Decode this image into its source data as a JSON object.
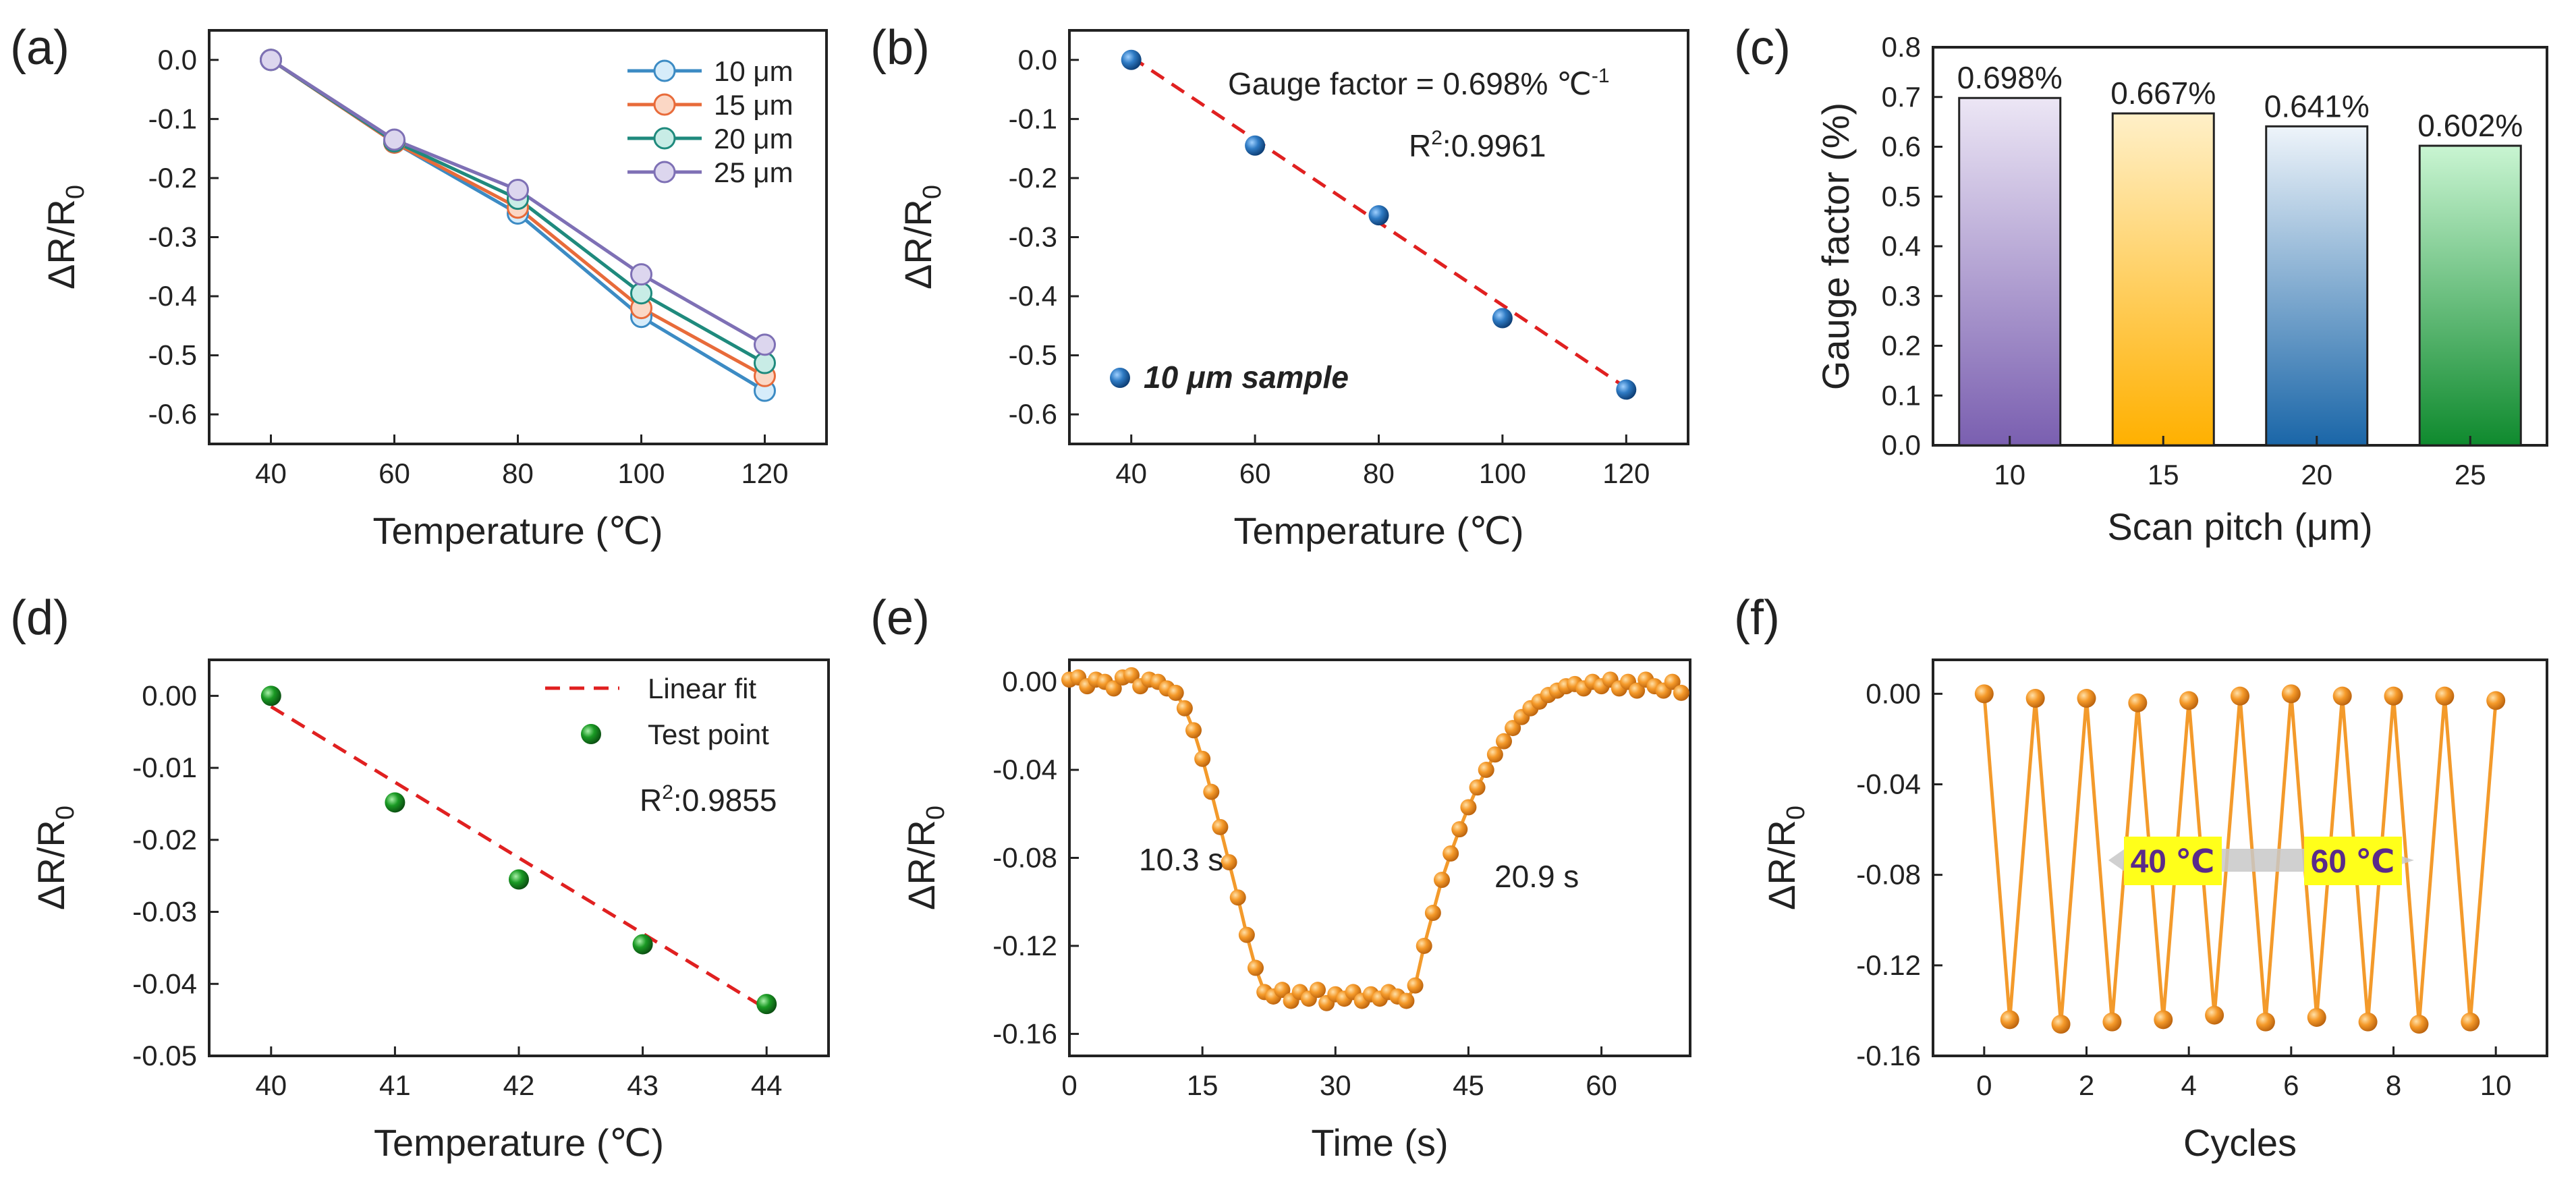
{
  "colors": {
    "blue_series": "#3c8bc4",
    "orange_series": "#e86b3a",
    "teal_series": "#1f8a7d",
    "purple_series": "#7e70b5",
    "fit_line": "#e02020",
    "blue_point": "#1f5fa0",
    "green_point": "#138a1b",
    "orange_point": "#f39a2b",
    "yellow_box": "#ffff1a",
    "arrow_gray": "#c8c8c8"
  },
  "panel_labels": {
    "a": "(a)",
    "b": "(b)",
    "c": "(c)",
    "d": "(d)",
    "e": "(e)",
    "f": "(f)"
  },
  "chart_data": [
    {
      "id": "a",
      "type": "line",
      "xlabel": "Temperature (℃)",
      "ylabel": "ΔR/R",
      "ylabel_sub": "0",
      "xlim": [
        30,
        130
      ],
      "ylim": [
        -0.65,
        0.05
      ],
      "xticks": [
        40,
        60,
        80,
        100,
        120
      ],
      "xtick_labels": [
        "40",
        "60",
        "80",
        "100",
        "120"
      ],
      "yticks": [
        0.0,
        -0.1,
        -0.2,
        -0.3,
        -0.4,
        -0.5,
        -0.6
      ],
      "ytick_labels": [
        "0.0",
        "-0.1",
        "-0.2",
        "-0.3",
        "-0.4",
        "-0.5",
        "-0.6"
      ],
      "x": [
        40,
        60,
        80,
        100,
        120
      ],
      "legend_position": "top-right",
      "series": [
        {
          "name": "10 μm",
          "values": [
            0.0,
            -0.14,
            -0.26,
            -0.435,
            -0.56
          ]
        },
        {
          "name": "15 μm",
          "values": [
            0.0,
            -0.14,
            -0.25,
            -0.42,
            -0.535
          ]
        },
        {
          "name": "20 μm",
          "values": [
            0.0,
            -0.138,
            -0.235,
            -0.395,
            -0.513
          ]
        },
        {
          "name": "25 μm",
          "values": [
            0.0,
            -0.135,
            -0.22,
            -0.363,
            -0.482
          ]
        }
      ]
    },
    {
      "id": "b",
      "type": "scatter",
      "xlabel": "Temperature (℃)",
      "ylabel": "ΔR/R",
      "ylabel_sub": "0",
      "xlim": [
        30,
        130
      ],
      "ylim": [
        -0.65,
        0.05
      ],
      "xticks": [
        40,
        60,
        80,
        100,
        120
      ],
      "xtick_labels": [
        "40",
        "60",
        "80",
        "100",
        "120"
      ],
      "yticks": [
        0.0,
        -0.1,
        -0.2,
        -0.3,
        -0.4,
        -0.5,
        -0.6
      ],
      "ytick_labels": [
        "0.0",
        "-0.1",
        "-0.2",
        "-0.3",
        "-0.4",
        "-0.5",
        "-0.6"
      ],
      "x": [
        40,
        60,
        80,
        100,
        120
      ],
      "values": [
        0.0,
        -0.145,
        -0.263,
        -0.437,
        -0.558
      ],
      "fit": {
        "x": [
          40,
          120
        ],
        "y": [
          0.005,
          -0.555
        ]
      },
      "gauge_text": "Gauge factor = 0.698% ℃",
      "gauge_sup": "-1",
      "r2_prefix": "R",
      "r2_sup": "2",
      "r2_value": ":0.9961",
      "legend_text": "10 μm sample"
    },
    {
      "id": "c",
      "type": "bar",
      "xlabel": "Scan pitch (μm)",
      "ylabel": "Gauge factor (%)",
      "ylim": [
        0,
        0.8
      ],
      "yticks": [
        0.0,
        0.1,
        0.2,
        0.3,
        0.4,
        0.5,
        0.6,
        0.7,
        0.8
      ],
      "ytick_labels": [
        "0.0",
        "0.1",
        "0.2",
        "0.3",
        "0.4",
        "0.5",
        "0.6",
        "0.7",
        "0.8"
      ],
      "categories": [
        "10",
        "15",
        "20",
        "25"
      ],
      "values": [
        0.698,
        0.667,
        0.641,
        0.602
      ],
      "data_labels": [
        "0.698%",
        "0.667%",
        "0.641%",
        "0.602%"
      ],
      "bar_colors_bottom": [
        "#7a5fb0",
        "#ffb000",
        "#1a66a8",
        "#0f8a2e"
      ],
      "bar_colors_top": [
        "#ece6f5",
        "#fff0c8",
        "#eef4fa",
        "#c9f5d2"
      ]
    },
    {
      "id": "d",
      "type": "scatter",
      "xlabel": "Temperature (℃)",
      "ylabel": "ΔR/R",
      "ylabel_sub": "0",
      "xlim": [
        39.5,
        44.5
      ],
      "ylim": [
        -0.05,
        0.005
      ],
      "xticks": [
        40,
        41,
        42,
        43,
        44
      ],
      "xtick_labels": [
        "40",
        "41",
        "42",
        "43",
        "44"
      ],
      "yticks": [
        0.0,
        -0.01,
        -0.02,
        -0.03,
        -0.04,
        -0.05
      ],
      "ytick_labels": [
        "0.00",
        "-0.01",
        "-0.02",
        "-0.03",
        "-0.04",
        "-0.05"
      ],
      "x": [
        40,
        41,
        42,
        43,
        44
      ],
      "values": [
        0.0,
        -0.0148,
        -0.0255,
        -0.0345,
        -0.0428
      ],
      "fit": {
        "x": [
          40,
          44
        ],
        "y": [
          -0.0015,
          -0.0435
        ]
      },
      "legend": [
        "Linear fit",
        "Test point"
      ],
      "legend_position": "top-right",
      "r2_prefix": "R",
      "r2_sup": "2",
      "r2_value": ":0.9855"
    },
    {
      "id": "e",
      "type": "line",
      "xlabel": "Time (s)",
      "ylabel": "ΔR/R",
      "ylabel_sub": "0",
      "xlim": [
        0,
        70
      ],
      "ylim": [
        -0.17,
        0.01
      ],
      "xticks": [
        0,
        15,
        30,
        45,
        60
      ],
      "xtick_labels": [
        "0",
        "15",
        "30",
        "45",
        "60"
      ],
      "yticks": [
        0.0,
        -0.04,
        -0.08,
        -0.12,
        -0.16
      ],
      "ytick_labels": [
        "0.00",
        "-0.04",
        "-0.08",
        "-0.12",
        "-0.16"
      ],
      "x": [
        0,
        1,
        2,
        3,
        4,
        5,
        6,
        7,
        8,
        9,
        10,
        11,
        12,
        13,
        14,
        15,
        16,
        17,
        18,
        19,
        20,
        21,
        22,
        23,
        24,
        25,
        26,
        27,
        28,
        29,
        30,
        31,
        32,
        33,
        34,
        35,
        36,
        37,
        38,
        39,
        40,
        41,
        42,
        43,
        44,
        45,
        46,
        47,
        48,
        49,
        50,
        51,
        52,
        53,
        54,
        55,
        56,
        57,
        58,
        59,
        60,
        61,
        62,
        63,
        64,
        65,
        66,
        67,
        68,
        69
      ],
      "values": [
        0.001,
        0.002,
        -0.002,
        0.001,
        0.0,
        -0.003,
        0.002,
        0.003,
        -0.002,
        0.001,
        0.0,
        -0.003,
        -0.005,
        -0.012,
        -0.022,
        -0.035,
        -0.05,
        -0.066,
        -0.082,
        -0.098,
        -0.115,
        -0.13,
        -0.141,
        -0.143,
        -0.14,
        -0.145,
        -0.141,
        -0.144,
        -0.14,
        -0.146,
        -0.142,
        -0.144,
        -0.141,
        -0.145,
        -0.142,
        -0.144,
        -0.141,
        -0.143,
        -0.145,
        -0.138,
        -0.12,
        -0.105,
        -0.09,
        -0.078,
        -0.067,
        -0.057,
        -0.048,
        -0.04,
        -0.033,
        -0.027,
        -0.021,
        -0.016,
        -0.012,
        -0.009,
        -0.006,
        -0.004,
        -0.002,
        -0.001,
        -0.003,
        0.0,
        -0.002,
        0.001,
        -0.003,
        0.0,
        -0.004,
        0.001,
        -0.002,
        -0.004,
        0.0,
        -0.005
      ],
      "annotations": [
        "10.3 s",
        "20.9 s"
      ]
    },
    {
      "id": "f",
      "type": "line",
      "xlabel": "Cycles",
      "ylabel": "ΔR/R",
      "ylabel_sub": "0",
      "xlim": [
        -1,
        11
      ],
      "ylim": [
        -0.16,
        0.015
      ],
      "xticks": [
        0,
        2,
        4,
        6,
        8,
        10
      ],
      "xtick_labels": [
        "0",
        "2",
        "4",
        "6",
        "8",
        "10"
      ],
      "yticks": [
        0.0,
        -0.04,
        -0.08,
        -0.12,
        -0.16
      ],
      "ytick_labels": [
        "0.00",
        "-0.04",
        "-0.08",
        "-0.12",
        "-0.16"
      ],
      "x": [
        0,
        0.5,
        1,
        1.5,
        2,
        2.5,
        3,
        3.5,
        4,
        4.5,
        5,
        5.5,
        6,
        6.5,
        7,
        7.5,
        8,
        8.5,
        9,
        9.5,
        10
      ],
      "values": [
        0.0,
        -0.144,
        -0.002,
        -0.146,
        -0.002,
        -0.145,
        -0.004,
        -0.144,
        -0.003,
        -0.142,
        -0.001,
        -0.145,
        0.0,
        -0.143,
        -0.001,
        -0.145,
        -0.001,
        -0.146,
        -0.001,
        -0.145,
        -0.003
      ],
      "labels": [
        "40 ℃",
        "60 ℃"
      ]
    }
  ]
}
